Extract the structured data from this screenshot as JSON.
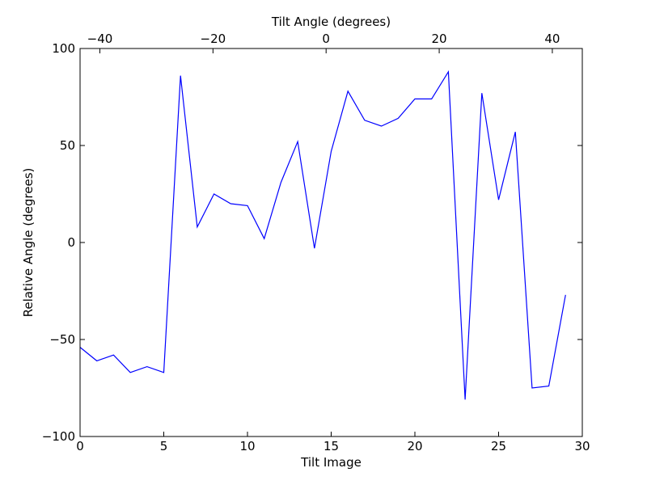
{
  "chart_data": {
    "type": "line",
    "xlabel": "Tilt Image",
    "ylabel": "Relative Angle (degrees)",
    "top_xlabel": "Tilt Angle (degrees)",
    "xlim": [
      0,
      30
    ],
    "ylim": [
      -100,
      100
    ],
    "top_xlim": [
      -43.5,
      45.3
    ],
    "x_ticks": [
      0,
      5,
      10,
      15,
      20,
      25,
      30
    ],
    "y_ticks": [
      -100,
      -50,
      0,
      50,
      100
    ],
    "top_x_ticks": [
      -40,
      -20,
      0,
      20,
      40
    ],
    "x_tick_labels": [
      "0",
      "5",
      "10",
      "15",
      "20",
      "25",
      "30"
    ],
    "y_tick_labels": [
      "−100",
      "−50",
      "0",
      "50",
      "100"
    ],
    "top_x_tick_labels": [
      "−40",
      "−20",
      "0",
      "20",
      "40"
    ],
    "grid": false,
    "series": [
      {
        "color": "#0000ff",
        "x": [
          0,
          1,
          2,
          3,
          4,
          5,
          6,
          7,
          8,
          9,
          10,
          11,
          12,
          13,
          14,
          15,
          16,
          17,
          18,
          19,
          20,
          21,
          22,
          23,
          24,
          25,
          26,
          27,
          28,
          29
        ],
        "values": [
          -54,
          -61,
          -58,
          -67,
          -64,
          -67,
          86,
          8,
          25,
          20,
          19,
          2,
          31,
          52,
          -3,
          47,
          78,
          63,
          60,
          64,
          74,
          74,
          88,
          -81,
          77,
          22,
          57,
          -75,
          -74,
          -27
        ]
      }
    ]
  }
}
